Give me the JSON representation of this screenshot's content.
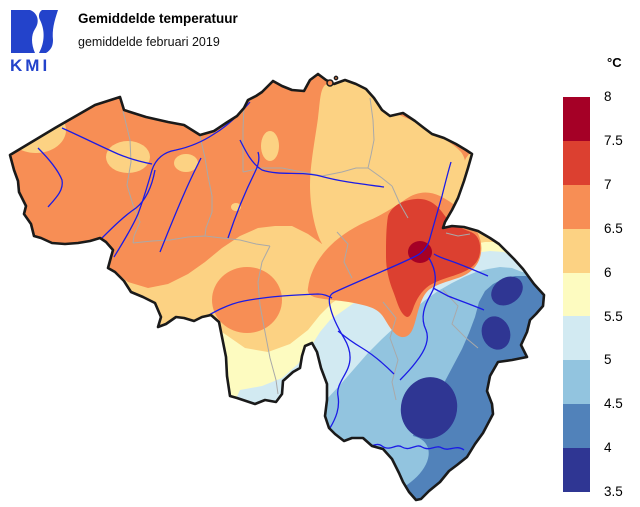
{
  "header": {
    "logo_text": "KMI",
    "title": "Gemiddelde temperatuur",
    "subtitle": "gemiddelde februari 2019"
  },
  "legend": {
    "unit": "°C",
    "tick_labels": [
      "8",
      "7.5",
      "7",
      "6.5",
      "6",
      "5.5",
      "5",
      "4.5",
      "4",
      "3.5"
    ],
    "colors": [
      "#a50026",
      "#dc4030",
      "#f78e55",
      "#fcd283",
      "#fdfbc0",
      "#d2eaf2",
      "#92c4df",
      "#5182ba",
      "#2f3693"
    ]
  },
  "map": {
    "border_color": "#1a1a1a",
    "province_border_color": "#a9a9a9",
    "river_color": "#1b1be6",
    "background_color": "#ffffff"
  },
  "logo_color": "#2343cb"
}
